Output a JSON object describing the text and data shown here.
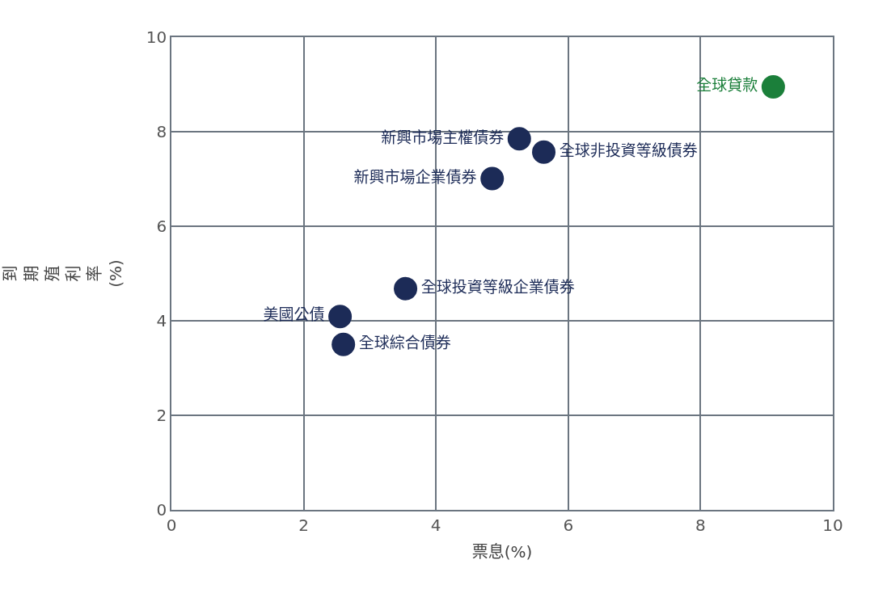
{
  "chart_data": {
    "type": "scatter",
    "xlabel": "票息(%)",
    "ylabel": "到期殖利率(%)",
    "series": [
      {
        "name": "全球貸款",
        "color": "#1b7f3a",
        "x": [
          9.1
        ],
        "values": [
          8.95
        ]
      },
      {
        "name": "新興市場主權債券",
        "color": "#1c2b57",
        "x": [
          5.26
        ],
        "values": [
          7.85
        ]
      },
      {
        "name": "全球非投資等級債券",
        "color": "#1c2b57",
        "x": [
          5.63
        ],
        "values": [
          7.57
        ]
      },
      {
        "name": "新興市場企業債券",
        "color": "#1c2b57",
        "x": [
          4.85
        ],
        "values": [
          7.01
        ]
      },
      {
        "name": "全球投資等級企業債券",
        "color": "#1c2b57",
        "x": [
          3.54
        ],
        "values": [
          4.68
        ]
      },
      {
        "name": "美國公債",
        "color": "#1c2b57",
        "x": [
          2.55
        ],
        "values": [
          4.09
        ]
      },
      {
        "name": "全球綜合債券",
        "color": "#1c2b57",
        "x": [
          2.6
        ],
        "values": [
          3.5
        ]
      }
    ],
    "xlim": [
      0,
      10
    ],
    "ylim": [
      0,
      10
    ],
    "xticks": [
      0,
      2,
      4,
      6,
      8,
      10
    ],
    "yticks": [
      0,
      2,
      4,
      6,
      8,
      10
    ],
    "grid": true,
    "legend": false,
    "marker": "circle"
  }
}
